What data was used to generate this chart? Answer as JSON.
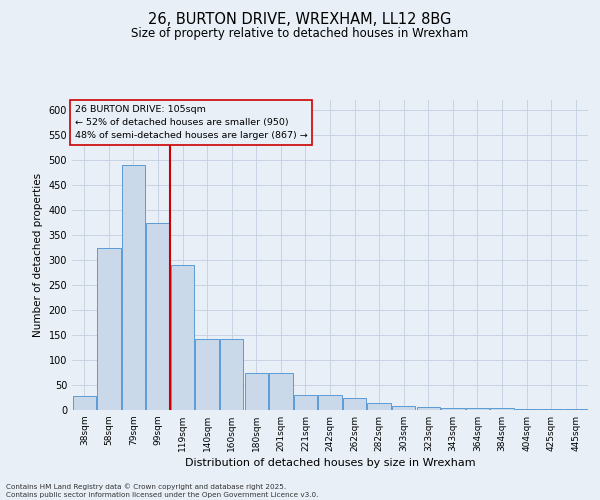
{
  "title_line1": "26, BURTON DRIVE, WREXHAM, LL12 8BG",
  "title_line2": "Size of property relative to detached houses in Wrexham",
  "xlabel": "Distribution of detached houses by size in Wrexham",
  "ylabel": "Number of detached properties",
  "categories": [
    "38sqm",
    "58sqm",
    "79sqm",
    "99sqm",
    "119sqm",
    "140sqm",
    "160sqm",
    "180sqm",
    "201sqm",
    "221sqm",
    "242sqm",
    "262sqm",
    "282sqm",
    "303sqm",
    "323sqm",
    "343sqm",
    "364sqm",
    "384sqm",
    "404sqm",
    "425sqm",
    "445sqm"
  ],
  "values": [
    28,
    325,
    490,
    375,
    290,
    142,
    142,
    75,
    75,
    30,
    30,
    25,
    14,
    8,
    6,
    5,
    4,
    4,
    3,
    3,
    3
  ],
  "bar_color": "#c9d9ea",
  "bar_edge_color": "#5b9bd5",
  "grid_color": "#c8d4e3",
  "background_color": "#e8eff7",
  "vline_color": "#cc0000",
  "vline_x_index": 3,
  "annotation_text_line1": "26 BURTON DRIVE: 105sqm",
  "annotation_text_line2": "← 52% of detached houses are smaller (950)",
  "annotation_text_line3": "48% of semi-detached houses are larger (867) →",
  "footnote": "Contains HM Land Registry data © Crown copyright and database right 2025.\nContains public sector information licensed under the Open Government Licence v3.0.",
  "ylim": [
    0,
    620
  ],
  "yticks": [
    0,
    50,
    100,
    150,
    200,
    250,
    300,
    350,
    400,
    450,
    500,
    550,
    600
  ]
}
